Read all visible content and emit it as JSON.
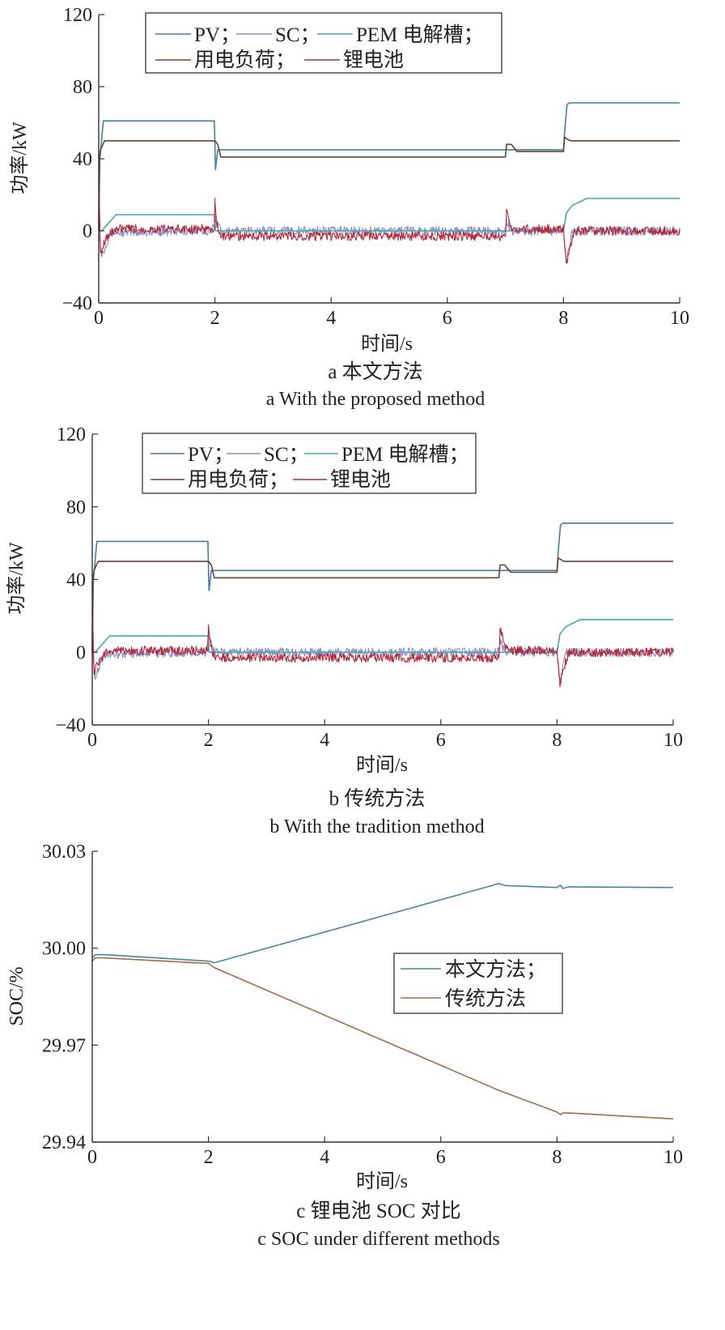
{
  "colors": {
    "pv": "#3e7fa6",
    "sc": "#8c8cc0",
    "pem": "#4aa3ad",
    "load": "#6b4030",
    "battery": "#b0283a",
    "soc_proposed": "#3e87a0",
    "soc_traditional": "#a86a44",
    "axis": "#333333"
  },
  "panels": [
    {
      "xlabel": "时间/s",
      "ylabel": "功率/kW",
      "caption_zh": "a  本文方法",
      "caption_en": "a  With the proposed method"
    },
    {
      "xlabel": "时间/s",
      "ylabel": "功率/kW",
      "caption_zh": "b  传统方法",
      "caption_en": "b  With the tradition method"
    },
    {
      "xlabel": "时间/s",
      "ylabel": "SOC/%",
      "caption_zh": "c  锂电池 SOC 对比",
      "caption_en": "c  SOC under different methods"
    }
  ],
  "legend_power": {
    "pv": "PV；",
    "sc": "SC；",
    "pem": "PEM 电解槽；",
    "load": "用电负荷；",
    "battery": "锂电池"
  },
  "legend_soc": {
    "proposed": "本文方法；",
    "traditional": "传统方法"
  },
  "chart_data": [
    {
      "type": "line",
      "title": "",
      "xlabel": "时间/s",
      "ylabel": "功率/kW",
      "xlim": [
        0,
        10
      ],
      "ylim": [
        -40,
        120
      ],
      "xticks": [
        0,
        2,
        4,
        6,
        8,
        10
      ],
      "yticks": [
        -40,
        0,
        40,
        80,
        120
      ],
      "legend_position": "top",
      "series": [
        {
          "name": "PV",
          "key": "pv",
          "x": [
            0,
            0.02,
            0.08,
            1.99,
            2.0,
            2.01,
            2.05,
            8.0,
            8.02,
            8.06,
            8.1,
            10
          ],
          "y": [
            0,
            40,
            61,
            61,
            48,
            34,
            45,
            45,
            55,
            70,
            71,
            71
          ]
        },
        {
          "name": "SC",
          "key": "sc",
          "x": [
            0,
            0.05,
            0.2,
            1.95,
            2.02,
            2.1,
            7.0,
            7.02,
            7.1,
            8.0,
            8.05,
            8.15,
            10
          ],
          "y": [
            0,
            -14,
            -1,
            0,
            8,
            0,
            0,
            6,
            0,
            0,
            -18,
            0,
            0
          ],
          "noisy": true
        },
        {
          "name": "PEM 电解槽",
          "key": "pem",
          "x": [
            0,
            0.05,
            0.3,
            1.99,
            2.01,
            2.05,
            8.0,
            8.05,
            8.15,
            8.4,
            10
          ],
          "y": [
            0,
            0,
            9,
            9,
            0,
            0,
            0,
            10,
            14,
            18,
            18
          ]
        },
        {
          "name": "用电负荷",
          "key": "load",
          "x": [
            0,
            0.01,
            0.03,
            0.1,
            1.99,
            2.0,
            2.05,
            2.1,
            7.0,
            7.02,
            7.1,
            7.2,
            8.0,
            8.02,
            8.06,
            8.12,
            10
          ],
          "y": [
            0,
            40,
            45,
            50,
            50,
            50,
            48,
            41,
            41,
            48,
            48,
            44,
            44,
            52,
            51,
            50,
            50
          ]
        },
        {
          "name": "锂电池",
          "key": "battery",
          "x": [
            0,
            0.03,
            0.12,
            0.3,
            1.99,
            2.0,
            2.03,
            2.1,
            7.0,
            7.02,
            7.1,
            7.2,
            8.0,
            8.05,
            8.1,
            8.2,
            10
          ],
          "y": [
            35,
            -12,
            -4,
            1,
            1,
            16,
            4,
            -3,
            -3,
            12,
            2,
            1,
            1,
            -18,
            -10,
            0,
            0
          ],
          "noisy": true
        }
      ]
    },
    {
      "type": "line",
      "title": "",
      "xlabel": "时间/s",
      "ylabel": "功率/kW",
      "xlim": [
        0,
        10
      ],
      "ylim": [
        -40,
        120
      ],
      "xticks": [
        0,
        2,
        4,
        6,
        8,
        10
      ],
      "yticks": [
        -40,
        0,
        40,
        80,
        120
      ],
      "legend_position": "top",
      "series": [
        {
          "name": "PV",
          "key": "pv",
          "x": [
            0,
            0.02,
            0.08,
            1.99,
            2.0,
            2.01,
            2.05,
            8.0,
            8.02,
            8.06,
            8.1,
            10
          ],
          "y": [
            0,
            40,
            61,
            61,
            48,
            34,
            45,
            45,
            55,
            70,
            71,
            71
          ]
        },
        {
          "name": "SC",
          "key": "sc",
          "x": [
            0,
            0.05,
            0.2,
            1.95,
            2.02,
            2.1,
            7.0,
            7.02,
            7.1,
            8.0,
            8.05,
            8.15,
            10
          ],
          "y": [
            0,
            -14,
            -1,
            0,
            8,
            0,
            0,
            6,
            0,
            0,
            -18,
            0,
            0
          ],
          "noisy": true
        },
        {
          "name": "PEM 电解槽",
          "key": "pem",
          "x": [
            0,
            0.05,
            0.3,
            1.99,
            2.01,
            2.05,
            8.0,
            8.05,
            8.15,
            8.4,
            10
          ],
          "y": [
            0,
            0,
            9,
            9,
            0,
            0,
            0,
            10,
            14,
            18,
            18
          ]
        },
        {
          "name": "用电负荷",
          "key": "load",
          "x": [
            0,
            0.01,
            0.03,
            0.1,
            1.99,
            2.0,
            2.05,
            2.1,
            7.0,
            7.02,
            7.1,
            7.2,
            8.0,
            8.02,
            8.06,
            8.12,
            10
          ],
          "y": [
            0,
            40,
            45,
            50,
            50,
            50,
            48,
            41,
            41,
            48,
            48,
            44,
            44,
            52,
            51,
            50,
            50
          ]
        },
        {
          "name": "锂电池",
          "key": "battery",
          "x": [
            0,
            0.03,
            0.12,
            0.3,
            1.99,
            2.0,
            2.03,
            2.1,
            7.0,
            7.02,
            7.1,
            7.2,
            8.0,
            8.05,
            8.1,
            8.2,
            10
          ],
          "y": [
            35,
            -12,
            -4,
            1,
            1,
            15,
            5,
            -3,
            -3,
            13,
            4,
            1,
            1,
            -19,
            -10,
            0,
            0
          ],
          "noisy": true
        }
      ]
    },
    {
      "type": "line",
      "title": "",
      "xlabel": "时间/s",
      "ylabel": "SOC/%",
      "xlim": [
        0,
        10
      ],
      "ylim": [
        29.94,
        30.03
      ],
      "xticks": [
        0,
        2,
        4,
        6,
        8,
        10
      ],
      "yticks": [
        29.94,
        29.97,
        30.0,
        30.03
      ],
      "ytick_labels": [
        "29.94",
        "29.97",
        "30.00",
        "30.03"
      ],
      "legend_position": "right",
      "series": [
        {
          "name": "本文方法",
          "key": "soc_proposed",
          "x": [
            0,
            0.05,
            0.2,
            2.0,
            2.1,
            7.0,
            7.1,
            8.0,
            8.06,
            8.1,
            8.2,
            10
          ],
          "y": [
            29.997,
            29.998,
            29.998,
            29.996,
            29.9955,
            30.02,
            30.0194,
            30.0188,
            30.0195,
            30.0185,
            30.019,
            30.0188
          ]
        },
        {
          "name": "传统方法",
          "key": "soc_traditional",
          "x": [
            0,
            0.05,
            0.2,
            2.0,
            2.1,
            7.0,
            8.0,
            8.06,
            8.1,
            8.2,
            10
          ],
          "y": [
            29.996,
            29.997,
            29.997,
            29.9953,
            29.994,
            29.956,
            29.9493,
            29.9485,
            29.949,
            29.949,
            29.9472
          ]
        }
      ]
    }
  ]
}
